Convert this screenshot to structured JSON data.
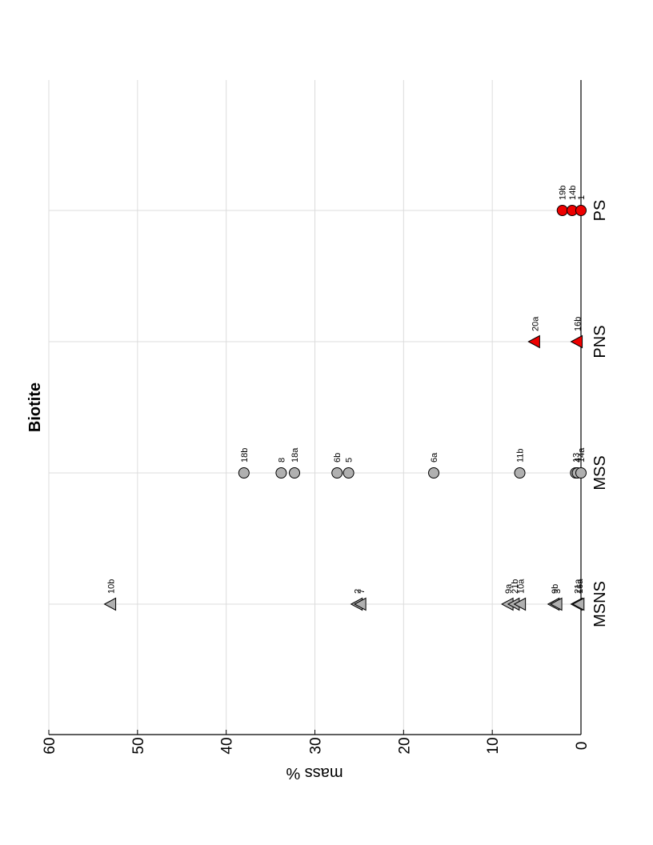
{
  "chart_data": {
    "type": "scatter",
    "title": "Biotite",
    "ylabel": "mass %",
    "xlabel": "",
    "categories": [
      "MSNS",
      "MSS",
      "PNS",
      "PS"
    ],
    "ylim": [
      0,
      60
    ],
    "yticks": [
      0,
      10,
      20,
      30,
      40,
      50,
      60
    ],
    "grid": true,
    "orientation": "rotated-90",
    "colors": {
      "gray": "#b0b0b0",
      "red": "#ee0000",
      "edge": "#000000"
    },
    "series": [
      {
        "category": "MSNS",
        "marker": "triangle",
        "color": "gray",
        "points": [
          {
            "label": "10b",
            "value": 53
          },
          {
            "label": "2",
            "value": 25.2
          },
          {
            "label": "7",
            "value": 24.8
          },
          {
            "label": "9a",
            "value": 8.2
          },
          {
            "label": "21b",
            "value": 7.5
          },
          {
            "label": "10a",
            "value": 6.8
          },
          {
            "label": "9b",
            "value": 3
          },
          {
            "label": "3",
            "value": 2.7
          },
          {
            "label": "21a",
            "value": 0.4
          },
          {
            "label": "16a",
            "value": 0.2
          }
        ]
      },
      {
        "category": "MSS",
        "marker": "circle",
        "color": "gray",
        "points": [
          {
            "label": "18b",
            "value": 38
          },
          {
            "label": "8",
            "value": 33.8
          },
          {
            "label": "18a",
            "value": 32.3
          },
          {
            "label": "6b",
            "value": 27.5
          },
          {
            "label": "5",
            "value": 26.2
          },
          {
            "label": "6a",
            "value": 16.6
          },
          {
            "label": "11b",
            "value": 6.9
          },
          {
            "label": "13",
            "value": 0.6
          },
          {
            "label": "4",
            "value": 0.4
          },
          {
            "label": "14a",
            "value": 0
          }
        ]
      },
      {
        "category": "PNS",
        "marker": "triangle",
        "color": "red",
        "points": [
          {
            "label": "20a",
            "value": 5.2
          },
          {
            "label": "16b",
            "value": 0.4
          }
        ]
      },
      {
        "category": "PS",
        "marker": "circle",
        "color": "red",
        "points": [
          {
            "label": "19b",
            "value": 2.1
          },
          {
            "label": "14b",
            "value": 1
          },
          {
            "label": "1",
            "value": 0
          }
        ]
      }
    ]
  }
}
